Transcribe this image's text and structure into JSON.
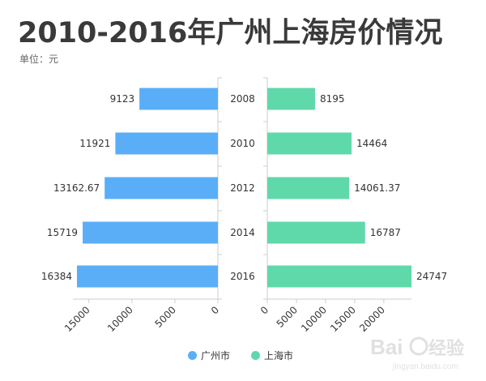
{
  "title": "2010-2016年广州上海房价情况",
  "unit_label": "单位：元",
  "colors": {
    "guangzhou": "#5aaef7",
    "shanghai": "#5fd9aa",
    "axis": "#cccccc",
    "text": "#333333"
  },
  "chart_data": {
    "type": "bar",
    "orientation": "horizontal-butterfly",
    "categories": [
      "2008",
      "2010",
      "2012",
      "2014",
      "2016"
    ],
    "series": [
      {
        "name": "广州市",
        "values": [
          9123,
          11921,
          13162.67,
          15719,
          16384
        ],
        "value_labels": [
          "9123",
          "11921",
          "13162.67",
          "15719",
          "16384"
        ]
      },
      {
        "name": "上海市",
        "values": [
          8195,
          14464,
          14061.37,
          16787,
          24747
        ],
        "value_labels": [
          "8195",
          "14464",
          "14061.37",
          "16787",
          "24747"
        ]
      }
    ],
    "left_axis": {
      "ticks": [
        0,
        5000,
        10000,
        15000
      ],
      "tick_labels": [
        "0",
        "5000",
        "10000",
        "15000"
      ],
      "max": 17000
    },
    "right_axis": {
      "ticks": [
        0,
        5000,
        10000,
        15000,
        20000
      ],
      "tick_labels": [
        "0",
        "5000",
        "10000",
        "15000",
        "20000"
      ],
      "max": 24747
    },
    "legend_position": "bottom-center",
    "grid": false
  },
  "legend": [
    {
      "label": "广州市",
      "color": "#5aaef7"
    },
    {
      "label": "上海市",
      "color": "#5fd9aa"
    }
  ],
  "watermark": {
    "text": "Bai经验",
    "sub": "jingyan.baidu.com"
  }
}
